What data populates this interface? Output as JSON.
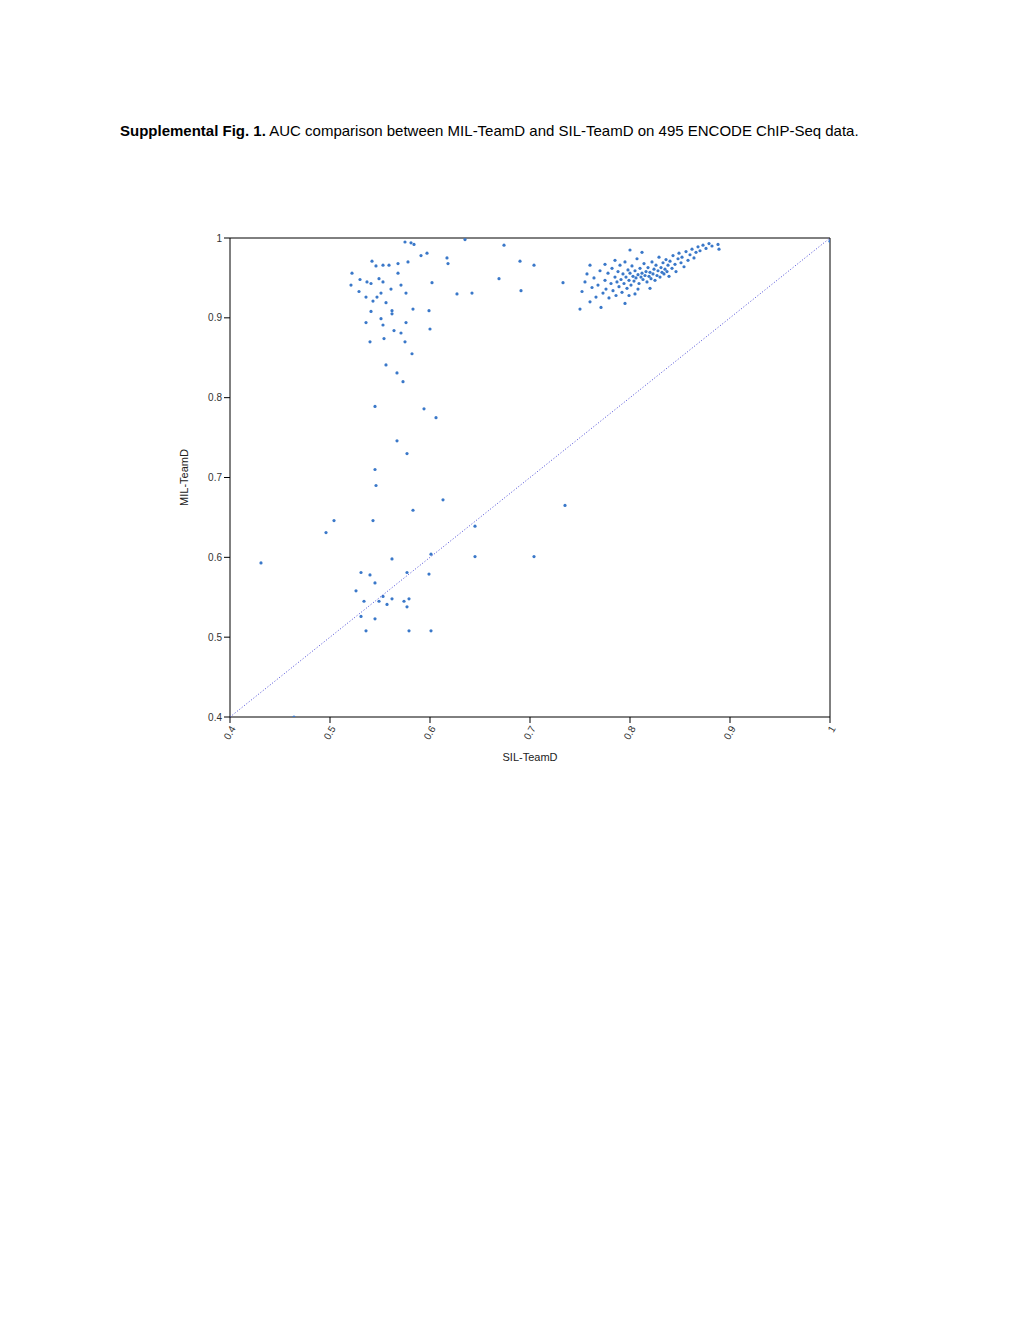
{
  "caption": {
    "label": "Supplemental Fig. 1.",
    "text": "AUC comparison between MIL-TeamD and SIL-TeamD on 495 ENCODE ChIP-Seq data."
  },
  "chart_data": {
    "type": "scatter",
    "xlabel": "SIL-TeamD",
    "ylabel": "MIL-TeamD",
    "xlim": [
      0.4,
      1
    ],
    "ylim": [
      0.4,
      1
    ],
    "xticks": [
      0.4,
      0.5,
      0.6,
      0.7,
      0.8,
      0.9,
      1
    ],
    "yticks": [
      0.4,
      0.5,
      0.6,
      0.7,
      0.8,
      0.9,
      1
    ],
    "grid": false,
    "series": [
      {
        "type": "scatter",
        "color": "#3a78c9",
        "marker": "circle",
        "x": [
          0.575,
          0.581,
          0.584,
          0.635,
          0.674,
          0.617,
          0.618,
          0.591,
          0.542,
          0.546,
          0.553,
          0.559,
          0.568,
          0.578,
          0.568,
          0.522,
          0.521,
          0.53,
          0.537,
          0.541,
          0.549,
          0.553,
          0.561,
          0.571,
          0.576,
          0.529,
          0.536,
          0.543,
          0.547,
          0.551,
          0.556,
          0.541,
          0.562,
          0.562,
          0.536,
          0.551,
          0.553,
          0.576,
          0.583,
          0.6,
          0.599,
          0.564,
          0.571,
          0.554,
          0.575,
          0.54,
          0.582,
          0.556,
          0.567,
          0.573,
          0.545,
          0.594,
          0.606,
          0.567,
          0.577,
          0.545,
          0.546,
          0.613,
          0.583,
          0.504,
          0.543,
          0.496,
          0.645,
          0.735,
          0.431,
          0.601,
          0.562,
          0.645,
          0.704,
          0.531,
          0.54,
          0.577,
          0.599,
          0.545,
          0.526,
          0.534,
          0.549,
          0.553,
          0.557,
          0.562,
          0.574,
          0.579,
          0.577,
          0.531,
          0.545,
          0.536,
          0.579,
          0.601,
          0.464,
          0.627,
          0.642,
          0.669,
          0.69,
          0.704,
          0.691,
          0.602,
          0.733,
          0.597,
          1.0,
          0.75,
          0.752,
          0.755,
          0.757,
          0.76,
          0.762,
          0.764,
          0.766,
          0.768,
          0.77,
          0.771,
          0.773,
          0.775,
          0.776,
          0.778,
          0.779,
          0.781,
          0.782,
          0.783,
          0.785,
          0.786,
          0.787,
          0.788,
          0.789,
          0.79,
          0.791,
          0.792,
          0.793,
          0.794,
          0.795,
          0.796,
          0.797,
          0.798,
          0.799,
          0.8,
          0.801,
          0.802,
          0.803,
          0.804,
          0.805,
          0.806,
          0.807,
          0.808,
          0.809,
          0.81,
          0.811,
          0.812,
          0.813,
          0.814,
          0.815,
          0.816,
          0.817,
          0.818,
          0.819,
          0.82,
          0.821,
          0.822,
          0.823,
          0.824,
          0.825,
          0.826,
          0.827,
          0.828,
          0.829,
          0.83,
          0.831,
          0.832,
          0.833,
          0.834,
          0.835,
          0.836,
          0.837,
          0.838,
          0.839,
          0.84,
          0.842,
          0.843,
          0.845,
          0.846,
          0.848,
          0.849,
          0.851,
          0.852,
          0.854,
          0.856,
          0.858,
          0.86,
          0.862,
          0.864,
          0.866,
          0.868,
          0.87,
          0.873,
          0.876,
          0.879,
          0.882,
          0.888,
          0.889,
          0.775,
          0.785,
          0.76,
          0.795,
          0.805,
          0.8,
          0.812,
          0.82,
          0.808,
          0.799
        ],
        "values": [
          0.995,
          0.994,
          0.992,
          0.998,
          0.991,
          0.975,
          0.968,
          0.978,
          0.971,
          0.965,
          0.966,
          0.966,
          0.968,
          0.97,
          0.956,
          0.956,
          0.941,
          0.948,
          0.945,
          0.943,
          0.949,
          0.945,
          0.936,
          0.941,
          0.931,
          0.933,
          0.926,
          0.921,
          0.926,
          0.931,
          0.919,
          0.908,
          0.909,
          0.905,
          0.894,
          0.899,
          0.891,
          0.894,
          0.911,
          0.886,
          0.909,
          0.884,
          0.881,
          0.874,
          0.87,
          0.87,
          0.855,
          0.841,
          0.831,
          0.82,
          0.789,
          0.786,
          0.775,
          0.746,
          0.73,
          0.71,
          0.69,
          0.672,
          0.659,
          0.646,
          0.646,
          0.631,
          0.639,
          0.665,
          0.593,
          0.604,
          0.598,
          0.601,
          0.601,
          0.581,
          0.578,
          0.581,
          0.579,
          0.568,
          0.558,
          0.545,
          0.545,
          0.551,
          0.541,
          0.548,
          0.545,
          0.548,
          0.538,
          0.526,
          0.523,
          0.508,
          0.508,
          0.508,
          0.4,
          0.93,
          0.931,
          0.949,
          0.971,
          0.966,
          0.934,
          0.944,
          0.944,
          0.981,
          0.996,
          0.911,
          0.933,
          0.945,
          0.955,
          0.92,
          0.938,
          0.95,
          0.926,
          0.941,
          0.959,
          0.913,
          0.931,
          0.947,
          0.936,
          0.956,
          0.925,
          0.943,
          0.962,
          0.934,
          0.951,
          0.928,
          0.945,
          0.958,
          0.939,
          0.966,
          0.948,
          0.932,
          0.955,
          0.943,
          0.97,
          0.951,
          0.937,
          0.96,
          0.947,
          0.956,
          0.941,
          0.965,
          0.952,
          0.946,
          0.959,
          0.95,
          0.974,
          0.954,
          0.943,
          0.962,
          0.951,
          0.956,
          0.948,
          0.968,
          0.953,
          0.958,
          0.945,
          0.963,
          0.952,
          0.957,
          0.949,
          0.97,
          0.955,
          0.961,
          0.947,
          0.966,
          0.953,
          0.959,
          0.976,
          0.951,
          0.963,
          0.957,
          0.969,
          0.955,
          0.961,
          0.973,
          0.958,
          0.966,
          0.952,
          0.971,
          0.962,
          0.978,
          0.967,
          0.958,
          0.974,
          0.981,
          0.969,
          0.976,
          0.964,
          0.983,
          0.972,
          0.979,
          0.986,
          0.975,
          0.982,
          0.989,
          0.984,
          0.991,
          0.987,
          0.993,
          0.99,
          0.992,
          0.986,
          0.967,
          0.972,
          0.966,
          0.918,
          0.93,
          0.985,
          0.982,
          0.937,
          0.936,
          0.928
        ]
      },
      {
        "type": "line",
        "color": "#4a4ad8",
        "line_style": "dotted",
        "x": [
          0.4,
          1
        ],
        "values": [
          0.4,
          1
        ]
      }
    ]
  }
}
